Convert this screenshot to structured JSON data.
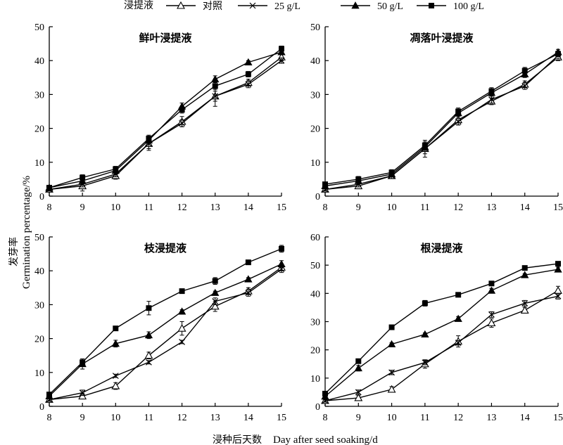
{
  "legend": {
    "title": "浸提液",
    "entries": [
      {
        "label": "对照",
        "marker": "open-triangle"
      },
      {
        "label": "25 g/L",
        "marker": "x"
      },
      {
        "label": "50 g/L",
        "marker": "filled-triangle"
      },
      {
        "label": "100 g/L",
        "marker": "filled-square"
      }
    ]
  },
  "xlabel_zh": "浸种后天数",
  "xlabel_en": "Day after seed soaking/d",
  "ylabel_zh": "发芽率",
  "ylabel_en": "Germination percentage/%",
  "chart_data": [
    {
      "type": "line",
      "title": "鲜叶浸提液",
      "x": [
        8,
        9,
        10,
        11,
        12,
        13,
        14,
        15
      ],
      "ylim": [
        0,
        50
      ],
      "yticks": [
        0,
        10,
        20,
        30,
        40,
        50
      ],
      "series": [
        {
          "name": "对照",
          "values": [
            2,
            3,
            6,
            15.5,
            22,
            29.5,
            33.5,
            41
          ],
          "errors": [
            0.5,
            1.5,
            1,
            2,
            1.5,
            3,
            1,
            1
          ]
        },
        {
          "name": "25 g/L",
          "values": [
            2,
            3.5,
            6.5,
            15.5,
            21.5,
            29.5,
            33,
            40
          ],
          "errors": [
            0.5,
            0.8,
            0.8,
            1.5,
            1,
            1.5,
            1,
            0.8
          ]
        },
        {
          "name": "50 g/L",
          "values": [
            2.5,
            4.5,
            7.5,
            16.5,
            26.5,
            34.5,
            39.5,
            42.5
          ],
          "errors": [
            0.5,
            0.8,
            0.8,
            1,
            1,
            1,
            0.5,
            0.8
          ]
        },
        {
          "name": "100 g/L",
          "values": [
            2.5,
            5.5,
            8,
            17,
            25.5,
            32.5,
            36,
            43.5
          ],
          "errors": [
            0.5,
            0.8,
            0.8,
            1,
            1,
            1,
            0.8,
            0.8
          ]
        }
      ]
    },
    {
      "type": "line",
      "title": "凋落叶浸提液",
      "x": [
        8,
        9,
        10,
        11,
        12,
        13,
        14,
        15
      ],
      "ylim": [
        0,
        50
      ],
      "yticks": [
        0,
        10,
        20,
        30,
        40,
        50
      ],
      "series": [
        {
          "name": "对照",
          "values": [
            2,
            3,
            6,
            14,
            22.5,
            28,
            33,
            41
          ],
          "errors": [
            0.5,
            0.8,
            0.8,
            1.5,
            1.5,
            1,
            1,
            1
          ]
        },
        {
          "name": "25 g/L",
          "values": [
            2,
            3.5,
            6,
            14,
            22,
            28.5,
            32.5,
            41.5
          ],
          "errors": [
            0.5,
            0.8,
            0.8,
            2.5,
            1,
            1,
            1,
            1
          ]
        },
        {
          "name": "50 g/L",
          "values": [
            3,
            4.5,
            6.5,
            14.5,
            24.5,
            30.5,
            36,
            42.5
          ],
          "errors": [
            0.5,
            0.8,
            0.8,
            1,
            1,
            1,
            1,
            0.8
          ]
        },
        {
          "name": "100 g/L",
          "values": [
            3.5,
            5,
            7,
            15,
            25,
            31,
            37,
            42
          ],
          "errors": [
            0.5,
            0.8,
            0.8,
            1,
            1,
            1,
            1,
            0.8
          ]
        }
      ]
    },
    {
      "type": "line",
      "title": "枝浸提液",
      "x": [
        8,
        9,
        10,
        11,
        12,
        13,
        14,
        15
      ],
      "ylim": [
        0,
        50
      ],
      "yticks": [
        0,
        10,
        20,
        30,
        40,
        50
      ],
      "series": [
        {
          "name": "对照",
          "values": [
            2,
            3,
            6,
            15,
            23,
            29.5,
            34,
            41
          ],
          "errors": [
            0.5,
            0.8,
            1,
            1,
            2,
            1.5,
            1,
            1
          ]
        },
        {
          "name": "25 g/L",
          "values": [
            2,
            4,
            9,
            13,
            19,
            31,
            33.5,
            40.5
          ],
          "errors": [
            0.5,
            0.8,
            0.5,
            0.5,
            0.5,
            1,
            1,
            1
          ]
        },
        {
          "name": "50 g/L",
          "values": [
            3,
            12.5,
            18.5,
            21,
            28,
            33.5,
            37.5,
            42
          ],
          "errors": [
            0.5,
            1.5,
            1,
            1,
            0.5,
            0.5,
            0.5,
            1
          ]
        },
        {
          "name": "100 g/L",
          "values": [
            3.5,
            13,
            23,
            29,
            34,
            37,
            42.5,
            46.5
          ],
          "errors": [
            0.5,
            1,
            0.5,
            2,
            0.5,
            1,
            0.5,
            1
          ]
        }
      ]
    },
    {
      "type": "line",
      "title": "根浸提液",
      "x": [
        8,
        9,
        10,
        11,
        12,
        13,
        14,
        15
      ],
      "ylim": [
        0,
        60
      ],
      "yticks": [
        0,
        10,
        20,
        30,
        40,
        50,
        60
      ],
      "series": [
        {
          "name": "对照",
          "values": [
            2,
            3,
            6,
            15,
            23,
            29.5,
            34,
            41
          ],
          "errors": [
            0.5,
            0.8,
            1,
            1.5,
            2,
            1.5,
            1,
            1.5
          ]
        },
        {
          "name": "25 g/L",
          "values": [
            2,
            5,
            12,
            15.5,
            22.5,
            32.5,
            36.5,
            39
          ],
          "errors": [
            0.5,
            0.8,
            0.8,
            0.8,
            0.8,
            1,
            1,
            1
          ]
        },
        {
          "name": "50 g/L",
          "values": [
            3.5,
            13.5,
            22,
            25.5,
            31,
            41,
            46.5,
            48.5
          ],
          "errors": [
            0.5,
            1,
            0.5,
            0.5,
            0.8,
            0.8,
            0.5,
            0.8
          ]
        },
        {
          "name": "100 g/L",
          "values": [
            4.5,
            16,
            28,
            36.5,
            39.5,
            43.5,
            49,
            50.5
          ],
          "errors": [
            0.5,
            0.8,
            0.5,
            1,
            0.5,
            0.8,
            0.8,
            0.8
          ]
        }
      ]
    }
  ]
}
